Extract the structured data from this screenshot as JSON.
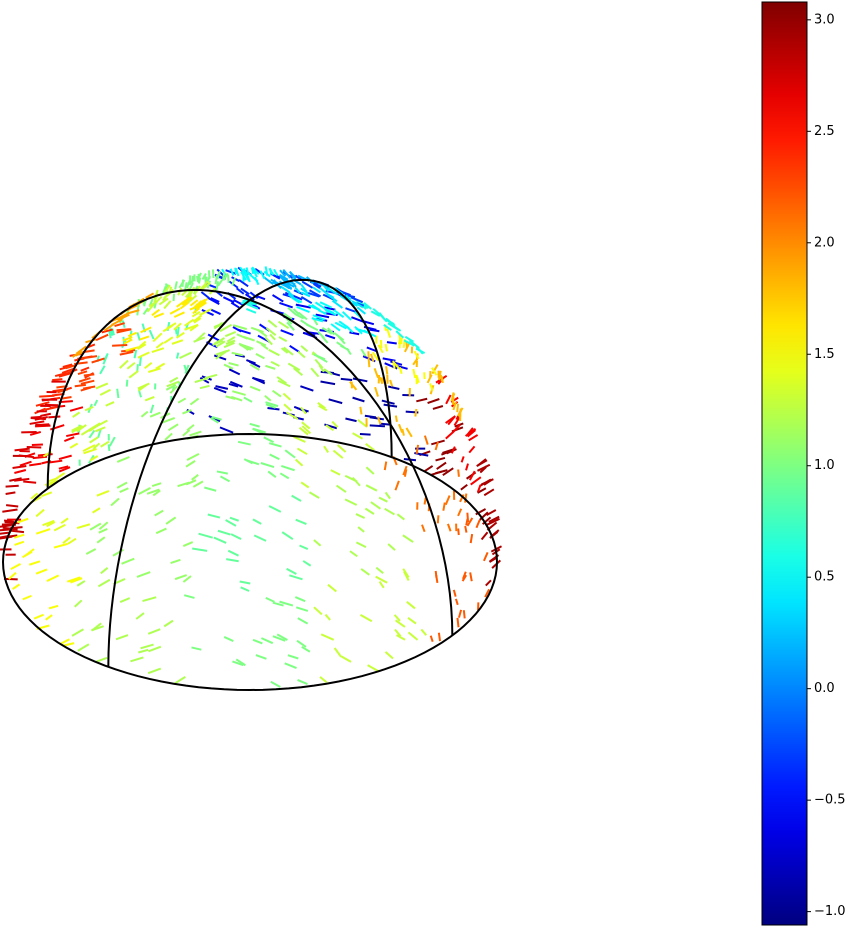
{
  "chart_data": {
    "type": "quiver3d",
    "colormap": "jet",
    "azimuth": [
      0,
      30,
      60,
      90,
      120,
      150,
      180,
      210,
      240,
      270,
      300,
      330,
      0,
      30,
      60,
      90,
      120,
      150,
      180,
      210,
      240,
      270,
      300,
      330,
      0,
      30,
      60,
      90,
      120,
      150,
      180,
      210,
      240,
      270,
      300,
      330,
      0,
      30,
      60,
      90,
      120,
      150,
      180,
      210,
      240,
      270,
      300,
      330,
      0
    ],
    "elevation": [
      10,
      10,
      10,
      10,
      10,
      10,
      10,
      10,
      10,
      10,
      10,
      10,
      30,
      30,
      30,
      30,
      30,
      30,
      30,
      30,
      30,
      30,
      30,
      30,
      50,
      50,
      50,
      50,
      50,
      50,
      50,
      50,
      50,
      50,
      50,
      50,
      70,
      70,
      70,
      70,
      70,
      70,
      70,
      70,
      70,
      70,
      70,
      70,
      88
    ],
    "values": [
      1.0,
      1.3,
      2.2,
      2.9,
      3.0,
      -0.9,
      -0.8,
      0.9,
      2.6,
      2.8,
      1.5,
      1.2,
      0.9,
      1.2,
      2.1,
      2.6,
      1.8,
      -0.6,
      -0.5,
      0.8,
      2.4,
      2.7,
      1.4,
      1.1,
      1.0,
      1.3,
      1.8,
      1.5,
      0.6,
      -0.3,
      -0.4,
      1.0,
      1.9,
      2.3,
      1.3,
      1.1,
      1.1,
      1.2,
      1.0,
      0.5,
      0.4,
      0.2,
      0.5,
      1.0,
      1.3,
      1.6,
      1.4,
      1.2,
      0.6
    ],
    "clim": [
      -1.06,
      3.08
    ],
    "cticks": [
      {
        "value": -1.0,
        "label": "−1.0"
      },
      {
        "value": -0.5,
        "label": "−0.5"
      },
      {
        "value": 0.0,
        "label": "0.0"
      },
      0.5,
      {
        "value": 1.0,
        "label": "1.0"
      },
      1.5,
      {
        "value": 2.0,
        "label": "2.0"
      },
      2.5,
      {
        "value": 3.0,
        "label": "3.0"
      }
    ]
  }
}
